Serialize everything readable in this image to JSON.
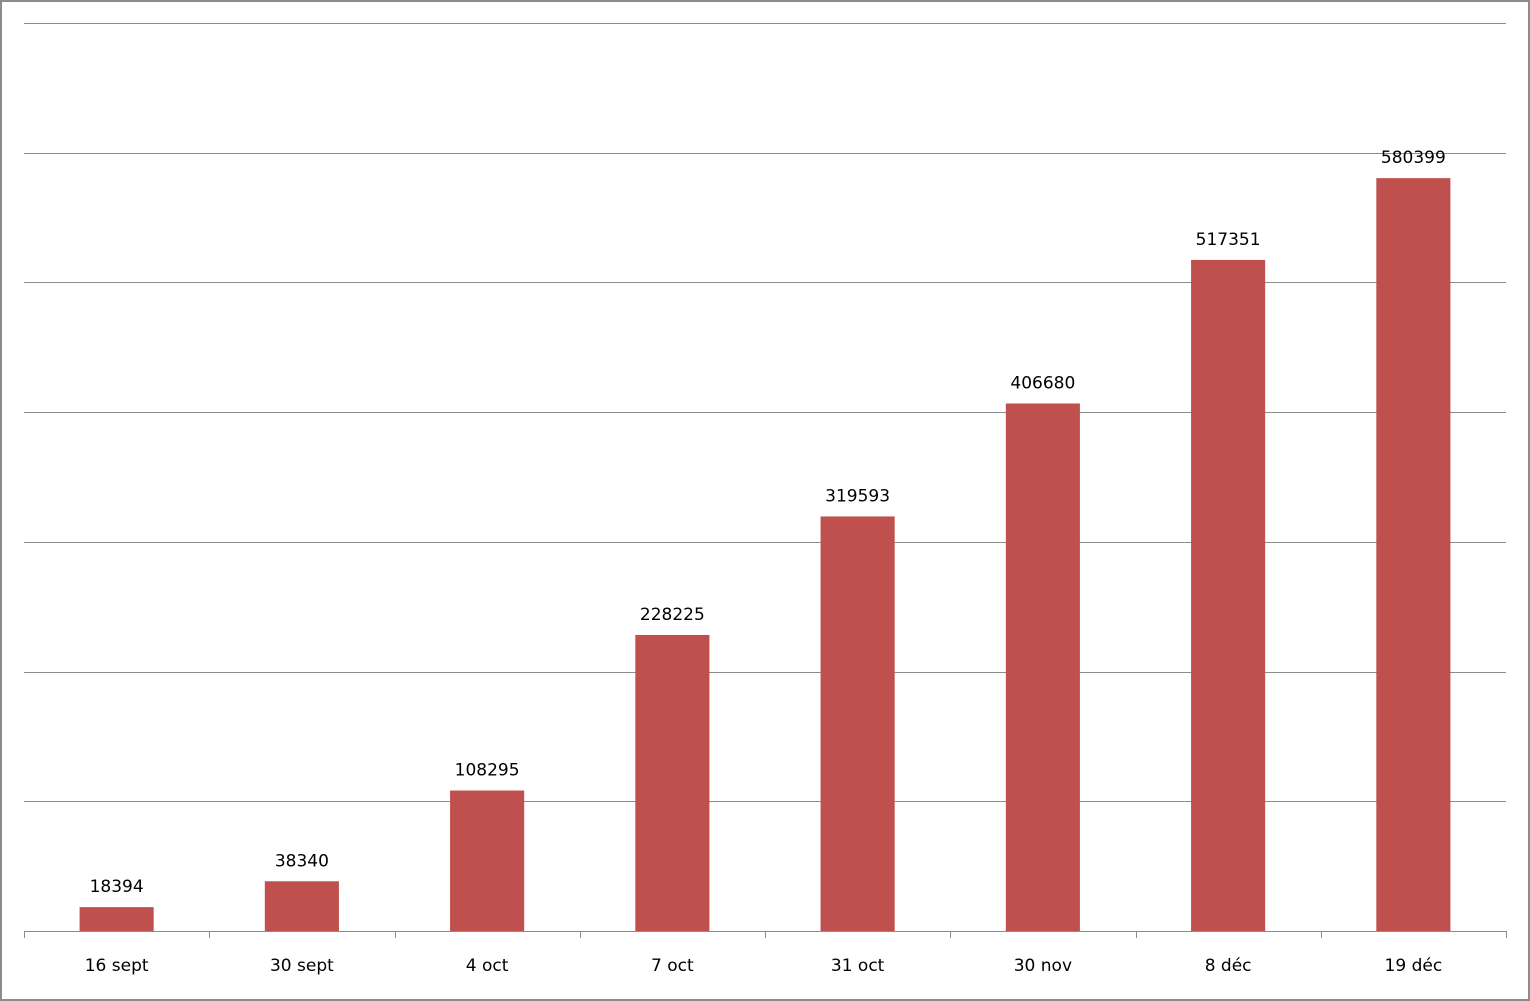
{
  "chart_data": {
    "type": "bar",
    "title": "",
    "xlabel": "",
    "ylabel": "",
    "categories": [
      "16 sept",
      "30 sept",
      "4 oct",
      "7 oct",
      "31 oct",
      "30 nov",
      "8 déc",
      "19 déc"
    ],
    "values": [
      18394,
      38340,
      108295,
      228225,
      319593,
      406680,
      517351,
      580399
    ],
    "ylim": [
      0,
      700000
    ],
    "grid": true,
    "gridline_count": 7,
    "show_y_tick_labels": false,
    "legend": "none",
    "colors": {
      "bar": "#c0504d",
      "grid": "#8c8c8c",
      "axis": "#8c8c8c"
    }
  }
}
